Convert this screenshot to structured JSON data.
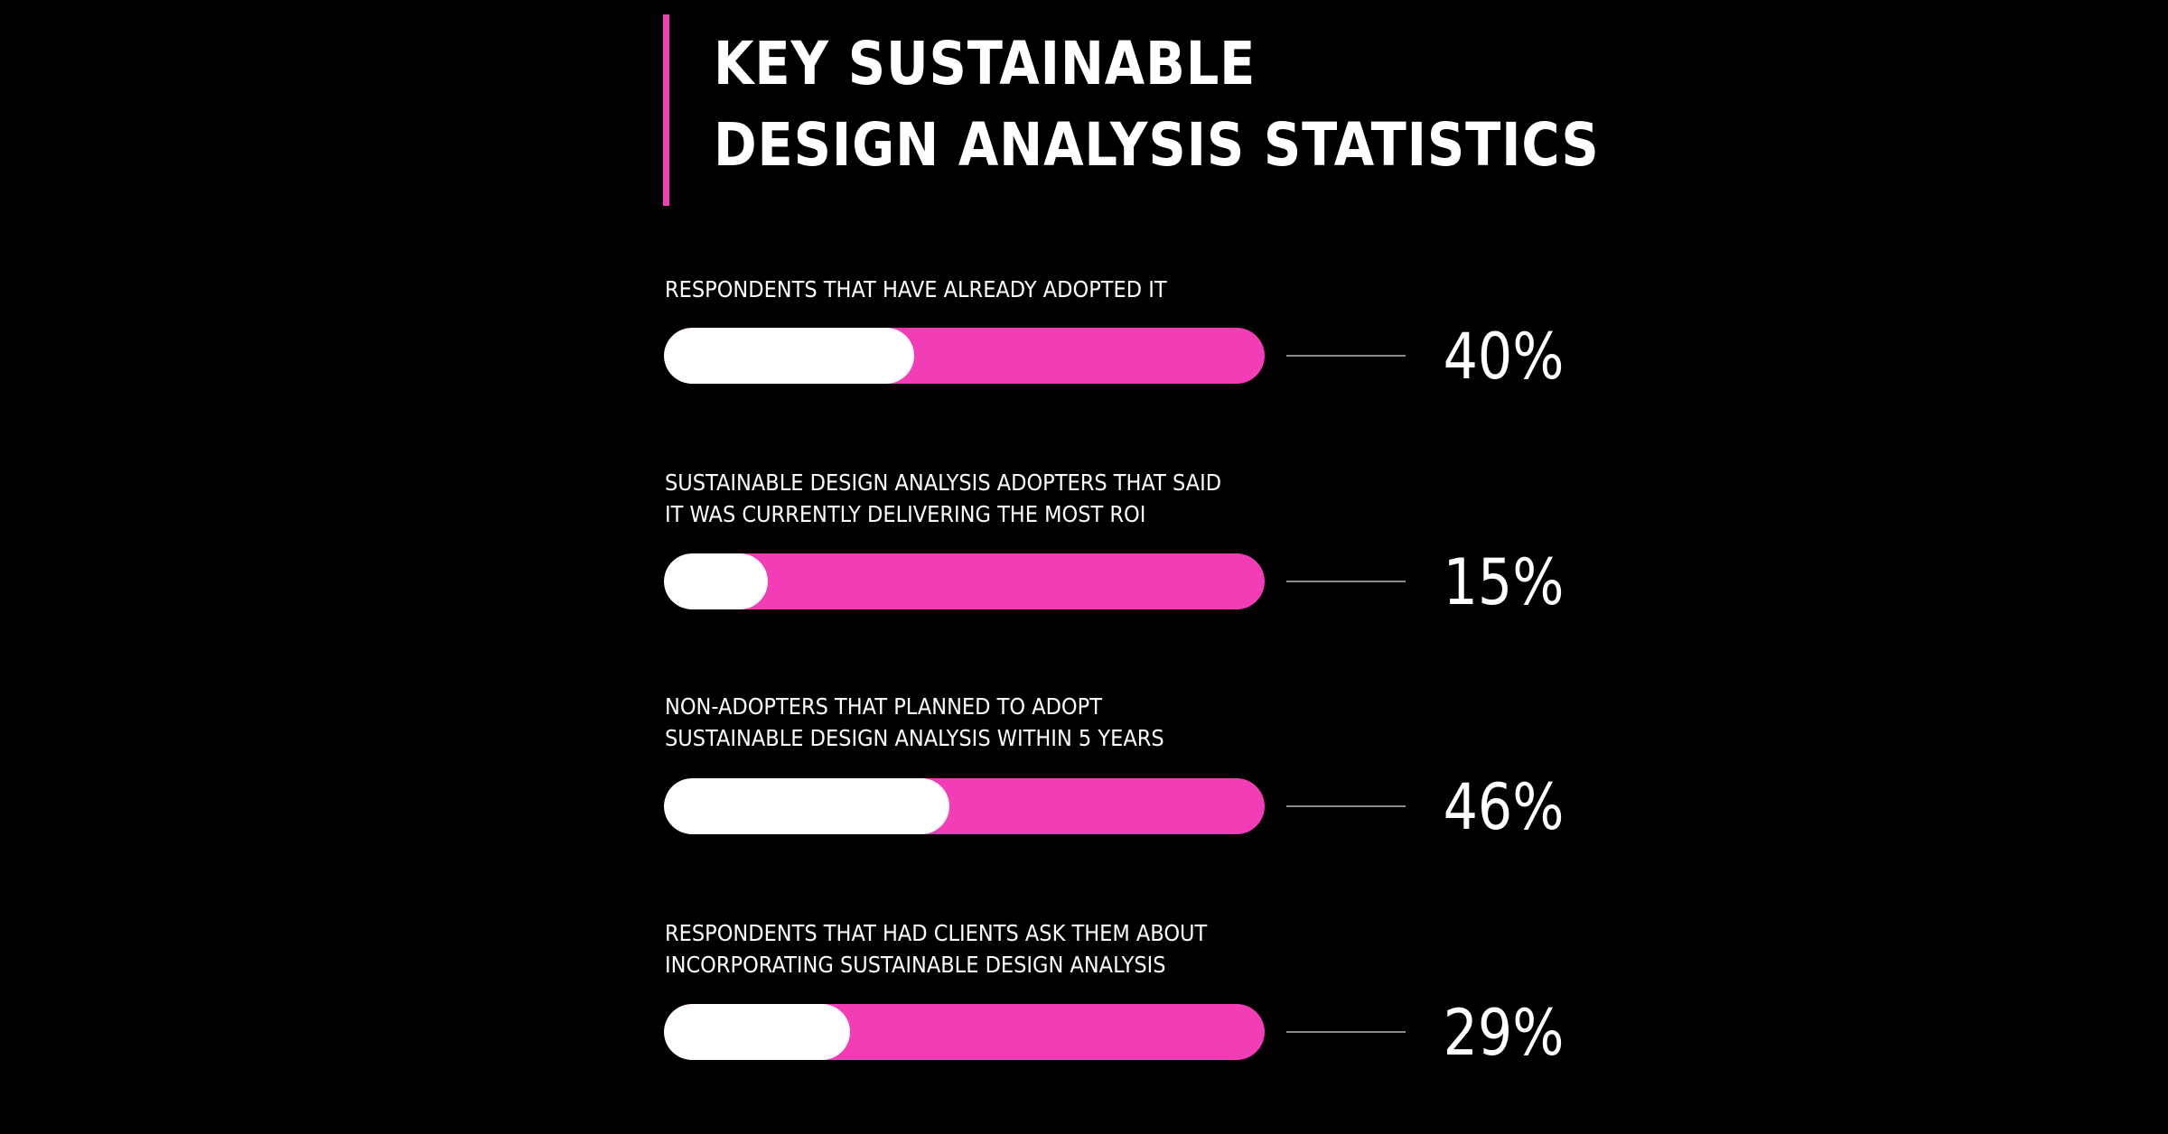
{
  "header": {
    "title_line_1": "KEY SUSTAINABLE",
    "title_line_2": "DESIGN ANALYSIS STATISTICS"
  },
  "colors": {
    "background": "#000000",
    "accent": "#f03fb5",
    "bar_track": "#f23db7",
    "bar_fill": "#ffffff",
    "text": "#ffffff"
  },
  "chart_data": {
    "type": "bar",
    "orientation": "horizontal-progress",
    "title": "KEY SUSTAINABLE DESIGN ANALYSIS STATISTICS",
    "value_max": 100,
    "items": [
      {
        "label_lines": [
          "RESPONDENTS THAT HAVE ALREADY ADOPTED IT"
        ],
        "value": 40,
        "value_label": "40%"
      },
      {
        "label_lines": [
          "SUSTAINABLE DESIGN ANALYSIS ADOPTERS THAT SAID",
          "IT WAS CURRENTLY DELIVERING THE MOST ROI"
        ],
        "value": 15,
        "value_label": "15%"
      },
      {
        "label_lines": [
          "NON-ADOPTERS THAT PLANNED TO ADOPT",
          "SUSTAINABLE DESIGN ANALYSIS WITHIN 5 YEARS"
        ],
        "value": 46,
        "value_label": "46%"
      },
      {
        "label_lines": [
          "RESPONDENTS THAT HAD CLIENTS ASK THEM ABOUT",
          "INCORPORATING SUSTAINABLE DESIGN ANALYSIS"
        ],
        "value": 29,
        "value_label": "29%"
      }
    ]
  }
}
